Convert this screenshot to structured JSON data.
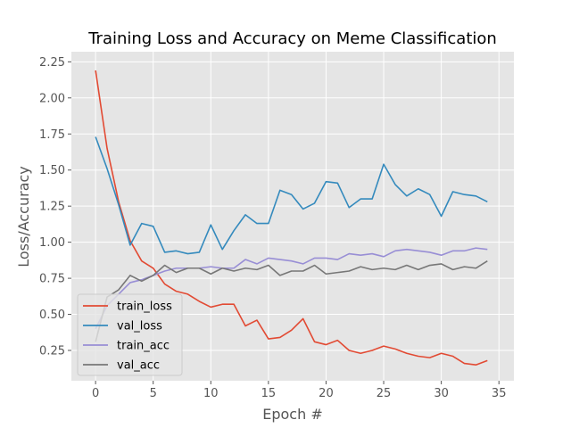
{
  "chart_data": {
    "type": "line",
    "title": "Training Loss and Accuracy on Meme Classification",
    "xlabel": "Epoch #",
    "ylabel": "Loss/Accuracy",
    "xlim": [
      -2.1,
      36.3
    ],
    "ylim": [
      0.04,
      2.32
    ],
    "xticks": [
      0,
      5,
      10,
      15,
      20,
      25,
      30,
      35
    ],
    "xtick_labels": [
      "0",
      "5",
      "10",
      "15",
      "20",
      "25",
      "30",
      "35"
    ],
    "yticks": [
      0.25,
      0.5,
      0.75,
      1.0,
      1.25,
      1.5,
      1.75,
      2.0,
      2.25
    ],
    "ytick_labels": [
      "0.25",
      "0.50",
      "0.75",
      "1.00",
      "1.25",
      "1.50",
      "1.75",
      "2.00",
      "2.25"
    ],
    "grid": true,
    "legend": "lower-left",
    "background": "#e5e5e5",
    "x": [
      0,
      1,
      2,
      3,
      4,
      5,
      6,
      7,
      8,
      9,
      10,
      11,
      12,
      13,
      14,
      15,
      16,
      17,
      18,
      19,
      20,
      21,
      22,
      23,
      24,
      25,
      26,
      27,
      28,
      29,
      30,
      31,
      32,
      33,
      34
    ],
    "series": [
      {
        "name": "train_loss",
        "color": "#e24a33",
        "values": [
          2.19,
          1.65,
          1.28,
          1.01,
          0.87,
          0.82,
          0.71,
          0.66,
          0.64,
          0.59,
          0.55,
          0.57,
          0.57,
          0.42,
          0.46,
          0.33,
          0.34,
          0.39,
          0.47,
          0.31,
          0.29,
          0.32,
          0.25,
          0.23,
          0.25,
          0.28,
          0.26,
          0.23,
          0.21,
          0.2,
          0.23,
          0.21,
          0.16,
          0.15,
          0.18
        ]
      },
      {
        "name": "val_loss",
        "color": "#348abd",
        "values": [
          1.73,
          1.51,
          1.26,
          0.98,
          1.13,
          1.11,
          0.93,
          0.94,
          0.92,
          0.93,
          1.12,
          0.95,
          1.08,
          1.19,
          1.13,
          1.13,
          1.36,
          1.33,
          1.23,
          1.27,
          1.42,
          1.41,
          1.24,
          1.3,
          1.3,
          1.54,
          1.4,
          1.32,
          1.37,
          1.33,
          1.18,
          1.35,
          1.33,
          1.32,
          1.28
        ]
      },
      {
        "name": "train_acc",
        "color": "#988ed5",
        "values": [
          0.4,
          0.56,
          0.64,
          0.72,
          0.74,
          0.77,
          0.8,
          0.82,
          0.82,
          0.82,
          0.83,
          0.82,
          0.82,
          0.88,
          0.85,
          0.89,
          0.88,
          0.87,
          0.85,
          0.89,
          0.89,
          0.88,
          0.92,
          0.91,
          0.92,
          0.9,
          0.94,
          0.95,
          0.94,
          0.93,
          0.91,
          0.94,
          0.94,
          0.96,
          0.95
        ]
      },
      {
        "name": "val_acc",
        "color": "#777777",
        "values": [
          0.31,
          0.62,
          0.67,
          0.77,
          0.73,
          0.77,
          0.84,
          0.79,
          0.82,
          0.82,
          0.78,
          0.82,
          0.8,
          0.82,
          0.81,
          0.84,
          0.77,
          0.8,
          0.8,
          0.84,
          0.78,
          0.79,
          0.8,
          0.83,
          0.81,
          0.82,
          0.81,
          0.84,
          0.81,
          0.84,
          0.85,
          0.81,
          0.83,
          0.82,
          0.87
        ]
      }
    ]
  }
}
